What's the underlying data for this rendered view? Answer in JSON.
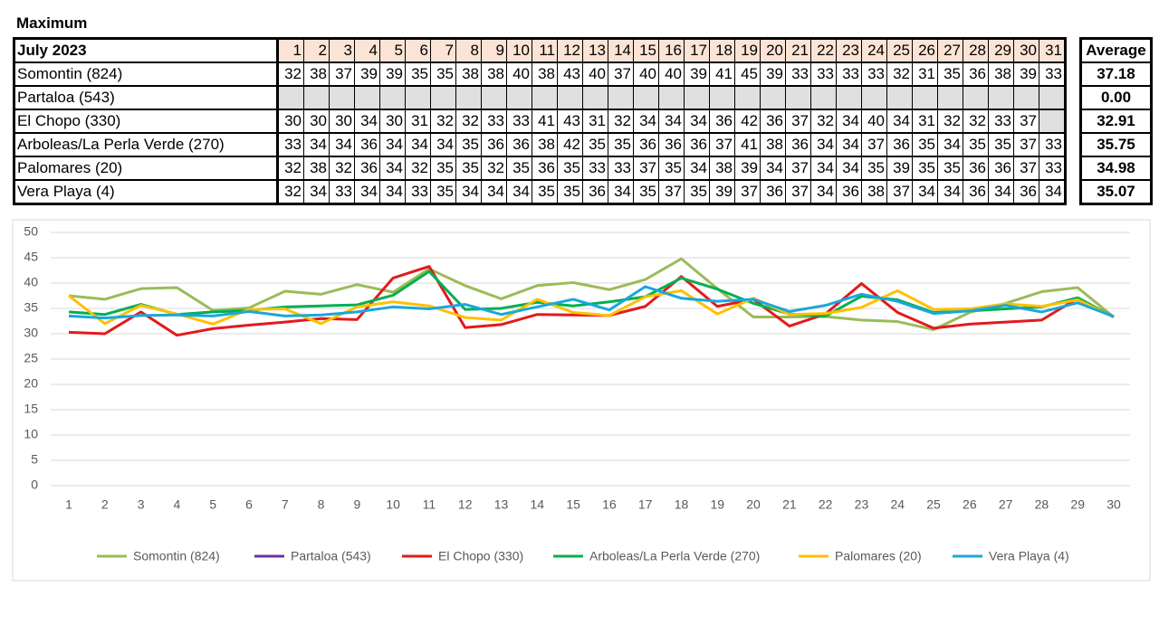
{
  "title": "Maximum",
  "table": {
    "header": "July 2023",
    "days": [
      1,
      2,
      3,
      4,
      5,
      6,
      7,
      8,
      9,
      10,
      11,
      12,
      13,
      14,
      15,
      16,
      17,
      18,
      19,
      20,
      21,
      22,
      23,
      24,
      25,
      26,
      27,
      28,
      29,
      30,
      31
    ],
    "average_header": "Average",
    "rows": [
      {
        "label": "Somontin (824)",
        "values": [
          32,
          38,
          37,
          39,
          39,
          35,
          35,
          38,
          38,
          40,
          38,
          43,
          40,
          37,
          40,
          40,
          39,
          41,
          45,
          39,
          33,
          33,
          33,
          33,
          32,
          31,
          35,
          36,
          38,
          39,
          33
        ],
        "average": "37.18"
      },
      {
        "label": "Partaloa (543)",
        "values": [
          null,
          null,
          null,
          null,
          null,
          null,
          null,
          null,
          null,
          null,
          null,
          null,
          null,
          null,
          null,
          null,
          null,
          null,
          null,
          null,
          null,
          null,
          null,
          null,
          null,
          null,
          null,
          null,
          null,
          null,
          null
        ],
        "average": "0.00"
      },
      {
        "label": "El Chopo (330)",
        "values": [
          30,
          30,
          30,
          34,
          30,
          31,
          32,
          32,
          33,
          33,
          41,
          43,
          31,
          32,
          34,
          34,
          34,
          36,
          42,
          36,
          37,
          32,
          34,
          40,
          34,
          31,
          32,
          32,
          33,
          37,
          null
        ],
        "average": "32.91"
      },
      {
        "label": "Arboleas/La Perla Verde (270)",
        "values": [
          33,
          34,
          34,
          36,
          34,
          34,
          34,
          35,
          36,
          36,
          38,
          42,
          35,
          35,
          36,
          36,
          36,
          37,
          41,
          38,
          36,
          34,
          34,
          37,
          36,
          35,
          34,
          35,
          35,
          37,
          33
        ],
        "average": "35.75"
      },
      {
        "label": "Palomares (20)",
        "values": [
          32,
          38,
          32,
          36,
          34,
          32,
          35,
          35,
          32,
          35,
          36,
          35,
          33,
          33,
          37,
          35,
          34,
          38,
          39,
          34,
          37,
          34,
          34,
          35,
          39,
          35,
          35,
          36,
          36,
          37,
          33
        ],
        "average": "34.98"
      },
      {
        "label": "Vera Playa (4)",
        "values": [
          32,
          34,
          33,
          34,
          34,
          33,
          35,
          34,
          34,
          34,
          35,
          35,
          36,
          34,
          35,
          37,
          35,
          39,
          37,
          36,
          37,
          34,
          36,
          38,
          37,
          34,
          34,
          36,
          34,
          36,
          34
        ],
        "average": "35.07"
      }
    ]
  },
  "chart_data": {
    "type": "line",
    "categories": [
      1,
      2,
      3,
      4,
      5,
      6,
      7,
      8,
      9,
      10,
      11,
      12,
      13,
      14,
      15,
      16,
      17,
      18,
      19,
      20,
      21,
      22,
      23,
      24,
      25,
      26,
      27,
      28,
      29,
      30
    ],
    "ylim": [
      0,
      50
    ],
    "yticks": [
      0,
      5,
      10,
      15,
      20,
      25,
      30,
      35,
      40,
      45,
      50
    ],
    "grid": true,
    "legend": "bottom",
    "series": [
      {
        "name": "Somontin (824)",
        "color": "#9bbb59",
        "values": [
          37.5,
          36.8,
          38.9,
          39.1,
          34.6,
          35.1,
          38.4,
          37.8,
          39.7,
          38.2,
          42.8,
          39.5,
          36.9,
          39.5,
          40.1,
          38.7,
          40.7,
          44.8,
          38.9,
          33.3,
          33.3,
          33.4,
          32.7,
          32.4,
          30.8,
          34.2,
          36,
          38.3,
          39.1,
          33.3
        ]
      },
      {
        "name": "Partaloa (543)",
        "color": "#7030a0",
        "values": [
          null,
          null,
          null,
          null,
          null,
          null,
          null,
          null,
          null,
          null,
          null,
          null,
          null,
          null,
          null,
          null,
          null,
          null,
          null,
          null,
          null,
          null,
          null,
          null,
          null,
          null,
          null,
          null,
          null,
          null
        ]
      },
      {
        "name": "El Chopo (330)",
        "color": "#e31a1c",
        "values": [
          30.3,
          30,
          34.3,
          29.7,
          31,
          31.7,
          32.3,
          33,
          32.8,
          41,
          43.3,
          31.2,
          31.8,
          33.8,
          33.7,
          33.6,
          35.4,
          41.3,
          35.4,
          36.8,
          31.5,
          33.9,
          39.9,
          34.2,
          31.1,
          31.9,
          32.3,
          32.7,
          37,
          33.3
        ]
      },
      {
        "name": "Arboleas/La Perla Verde (270)",
        "color": "#00b050",
        "values": [
          34.3,
          33.8,
          35.8,
          33.8,
          34.3,
          34.6,
          35.3,
          35.5,
          35.7,
          37.6,
          42.3,
          34.8,
          35,
          36.2,
          35.5,
          36.3,
          37.3,
          41,
          38.8,
          36,
          33.9,
          33.5,
          37.4,
          36.7,
          34.2,
          34.5,
          34.9,
          35.3,
          37.1,
          33.3
        ]
      },
      {
        "name": "Palomares (20)",
        "color": "#ffc000",
        "values": [
          37.5,
          32,
          35.6,
          33.9,
          31.9,
          34.8,
          34.9,
          32,
          35.3,
          36.3,
          35.5,
          33.2,
          32.7,
          36.8,
          34.2,
          33.6,
          37.3,
          38.5,
          33.9,
          37,
          33.8,
          34,
          35.2,
          38.5,
          34.8,
          34.9,
          35.9,
          35.4,
          36.7,
          33.3
        ]
      },
      {
        "name": "Vera Playa (4)",
        "color": "#1aa7dc",
        "values": [
          33.5,
          33.1,
          33.6,
          33.7,
          33.5,
          34.4,
          33.5,
          33.7,
          34.3,
          35.3,
          34.9,
          35.8,
          33.8,
          35.3,
          36.8,
          34.7,
          39.3,
          37,
          36.4,
          36.8,
          34.4,
          35.6,
          37.8,
          36.4,
          34,
          34.5,
          35.6,
          34.3,
          36.1,
          33.4
        ]
      }
    ]
  }
}
